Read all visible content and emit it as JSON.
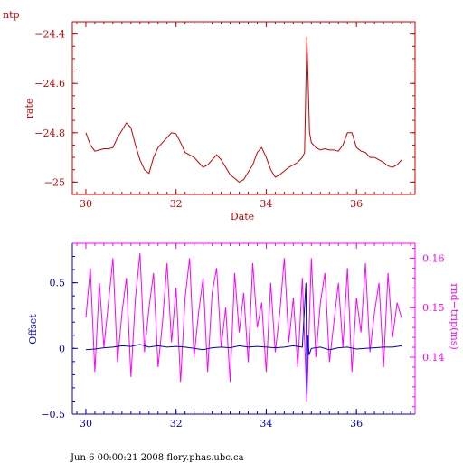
{
  "chart_data": [
    {
      "type": "line",
      "corner_label": "ntp",
      "xlabel": "Date",
      "ylabel": "rate",
      "xlim": [
        29.7,
        37.3
      ],
      "ylim": [
        -25.05,
        -24.35
      ],
      "x_ticks": [
        30,
        32,
        34,
        36
      ],
      "y_ticks": [
        -24.4,
        -24.6,
        -24.8,
        -25
      ],
      "x_tick_labels": [
        "30",
        "32",
        "34",
        "36"
      ],
      "y_tick_labels": [
        "−24.4",
        "−24.6",
        "−24.8",
        "−25"
      ],
      "color": "#cc0000",
      "series": [
        {
          "x": [
            30.0,
            30.1,
            30.2,
            30.3,
            30.4,
            30.5,
            30.6,
            30.7,
            30.8,
            30.9,
            31.0,
            31.1,
            31.2,
            31.3,
            31.4,
            31.5,
            31.6,
            31.7,
            31.8,
            31.9,
            32.0,
            32.1,
            32.2,
            32.3,
            32.4,
            32.5,
            32.6,
            32.7,
            32.8,
            32.9,
            33.0,
            33.1,
            33.2,
            33.3,
            33.4,
            33.5,
            33.6,
            33.7,
            33.8,
            33.9,
            34.0,
            34.1,
            34.2,
            34.3,
            34.4,
            34.5,
            34.6,
            34.7,
            34.8,
            34.85,
            34.88,
            34.9,
            34.93,
            34.96,
            35.0,
            35.1,
            35.2,
            35.3,
            35.4,
            35.5,
            35.6,
            35.7,
            35.8,
            35.9,
            36.0,
            36.1,
            36.2,
            36.3,
            36.4,
            36.5,
            36.6,
            36.7,
            36.8,
            36.9,
            37.0
          ],
          "y": [
            -24.8,
            -24.85,
            -24.875,
            -24.87,
            -24.865,
            -24.865,
            -24.86,
            -24.82,
            -24.79,
            -24.76,
            -24.78,
            -24.85,
            -24.91,
            -24.95,
            -24.965,
            -24.9,
            -24.86,
            -24.84,
            -24.82,
            -24.8,
            -24.805,
            -24.84,
            -24.88,
            -24.89,
            -24.9,
            -24.92,
            -24.94,
            -24.93,
            -24.91,
            -24.89,
            -24.91,
            -24.94,
            -24.97,
            -24.985,
            -25.0,
            -24.99,
            -24.96,
            -24.93,
            -24.88,
            -24.86,
            -24.9,
            -24.95,
            -24.98,
            -24.97,
            -24.955,
            -24.94,
            -24.93,
            -24.92,
            -24.9,
            -24.88,
            -24.6,
            -24.41,
            -24.6,
            -24.8,
            -24.84,
            -24.86,
            -24.87,
            -24.865,
            -24.87,
            -24.87,
            -24.875,
            -24.85,
            -24.8,
            -24.8,
            -24.86,
            -24.875,
            -24.88,
            -24.9,
            -24.9,
            -24.91,
            -24.92,
            -24.935,
            -24.94,
            -24.93,
            -24.91
          ]
        }
      ]
    },
    {
      "type": "line",
      "footer": "Jun  6 00:00:21 2008 flory.phas.ubc.ca",
      "ylabel": "Offset",
      "y2label": "rnd−trip(ms)",
      "xlim": [
        29.7,
        37.3
      ],
      "ylim": [
        -0.5,
        0.8
      ],
      "y2lim": [
        0.1285,
        0.163
      ],
      "x_ticks": [
        30,
        32,
        34,
        36
      ],
      "y_ticks": [
        0.5,
        0,
        -0.5
      ],
      "y2_ticks": [
        0.16,
        0.15,
        0.14
      ],
      "x_tick_labels": [
        "30",
        "32",
        "34",
        "36"
      ],
      "y_tick_labels": [
        "0.5",
        "0",
        "−0.5"
      ],
      "y2_tick_labels": [
        "0.16",
        "0.15",
        "0.14"
      ],
      "series": [
        {
          "axis": "right",
          "color": "#ff00ff",
          "x": [
            30.0,
            30.1,
            30.2,
            30.3,
            30.4,
            30.5,
            30.6,
            30.7,
            30.8,
            30.9,
            31.0,
            31.1,
            31.2,
            31.3,
            31.4,
            31.5,
            31.6,
            31.7,
            31.8,
            31.9,
            32.0,
            32.1,
            32.2,
            32.3,
            32.4,
            32.5,
            32.6,
            32.7,
            32.8,
            32.9,
            33.0,
            33.1,
            33.2,
            33.3,
            33.4,
            33.5,
            33.6,
            33.7,
            33.8,
            33.9,
            34.0,
            34.1,
            34.2,
            34.3,
            34.4,
            34.5,
            34.6,
            34.7,
            34.8,
            34.9,
            35.0,
            35.1,
            35.2,
            35.3,
            35.4,
            35.5,
            35.6,
            35.7,
            35.8,
            35.9,
            36.0,
            36.1,
            36.2,
            36.3,
            36.4,
            36.5,
            36.6,
            36.7,
            36.8,
            36.9,
            37.0
          ],
          "y": [
            0.148,
            0.158,
            0.137,
            0.155,
            0.142,
            0.151,
            0.16,
            0.139,
            0.149,
            0.156,
            0.136,
            0.152,
            0.161,
            0.141,
            0.15,
            0.157,
            0.138,
            0.147,
            0.159,
            0.143,
            0.154,
            0.135,
            0.152,
            0.16,
            0.14,
            0.149,
            0.156,
            0.137,
            0.153,
            0.158,
            0.142,
            0.15,
            0.135,
            0.157,
            0.145,
            0.153,
            0.139,
            0.159,
            0.146,
            0.151,
            0.137,
            0.155,
            0.141,
            0.149,
            0.16,
            0.143,
            0.152,
            0.138,
            0.156,
            0.131,
            0.16,
            0.14,
            0.151,
            0.157,
            0.139,
            0.147,
            0.155,
            0.142,
            0.158,
            0.137,
            0.152,
            0.145,
            0.159,
            0.141,
            0.149,
            0.155,
            0.138,
            0.157,
            0.144,
            0.151,
            0.148
          ]
        },
        {
          "axis": "left",
          "color": "#0000cc",
          "x": [
            30.0,
            30.2,
            30.4,
            30.6,
            30.8,
            31.0,
            31.2,
            31.4,
            31.6,
            31.8,
            32.0,
            32.2,
            32.4,
            32.6,
            32.8,
            33.0,
            33.2,
            33.4,
            33.6,
            33.8,
            34.0,
            34.2,
            34.4,
            34.6,
            34.8,
            34.88,
            34.9,
            34.92,
            34.95,
            35.0,
            35.2,
            35.4,
            35.6,
            35.8,
            36.0,
            36.2,
            36.4,
            36.6,
            36.8,
            37.0
          ],
          "y": [
            -0.01,
            -0.005,
            0.005,
            0.01,
            0.02,
            0.015,
            0.03,
            0.01,
            0.02,
            0.01,
            0.015,
            0.01,
            0.0,
            -0.01,
            0.005,
            0.01,
            0.005,
            0.02,
            0.01,
            0.015,
            0.01,
            0.005,
            0.01,
            0.02,
            0.01,
            0.5,
            -0.35,
            0.1,
            -0.05,
            0.0,
            0.01,
            -0.01,
            0.005,
            0.01,
            -0.005,
            0.0,
            0.005,
            0.01,
            0.01,
            0.02
          ]
        }
      ]
    }
  ]
}
